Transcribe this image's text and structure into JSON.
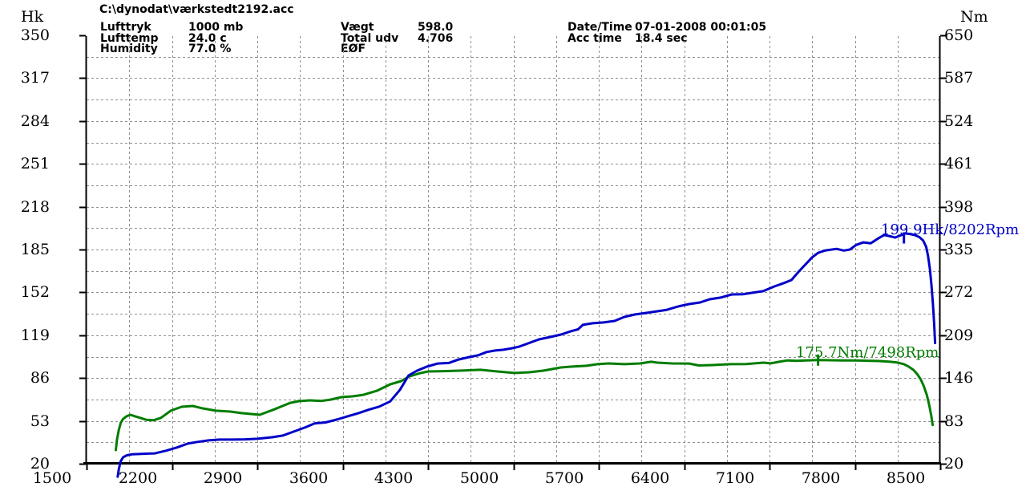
{
  "header": {
    "file_path": "C:\\dynodat\\værkstedt2192.acc",
    "info_columns": [
      {
        "rows": [
          {
            "label": "Lufttryk",
            "value": "1000 mb"
          },
          {
            "label": "Lufttemp",
            "value": "24.0 c"
          },
          {
            "label": "Humidity",
            "value": "77.0 %"
          }
        ]
      },
      {
        "rows": [
          {
            "label": "Vægt",
            "value": "598.0"
          },
          {
            "label": "Total udv",
            "value": "4.706"
          },
          {
            "label": "EØF",
            "value": ""
          }
        ]
      },
      {
        "rows": [
          {
            "label": "Date/Time",
            "value": "07-01-2008 00:01:05"
          },
          {
            "label": "Acc time",
            "value": "18.4 sec"
          }
        ]
      }
    ]
  },
  "chart_data": {
    "type": "line",
    "grid": "dashed",
    "colors": {
      "grid": "#8f8f8f",
      "axis": "#000000",
      "power": "#0000c8",
      "torque": "#007d00"
    },
    "x_axis": {
      "unit": "Rpm",
      "min": 1500,
      "max": 8500,
      "major_tick_step": 700,
      "minor_grid_step": 350,
      "tick_labels": [
        "1500",
        "2200",
        "2900",
        "3600",
        "4300",
        "5000",
        "5700",
        "6400",
        "7100",
        "7800",
        "8500"
      ]
    },
    "y_left": {
      "unit": "Hk",
      "min": 20,
      "max": 350,
      "step": 33,
      "tick_labels": [
        "350",
        "317",
        "284",
        "251",
        "218",
        "185",
        "152",
        "119",
        "86",
        "53",
        "20"
      ]
    },
    "y_right": {
      "unit": "Nm",
      "min": 20,
      "max": 650,
      "step": 63,
      "tick_labels": [
        "650",
        "587",
        "524",
        "461",
        "398",
        "335",
        "272",
        "209",
        "146",
        "83",
        "20"
      ]
    },
    "series": [
      {
        "name": "power",
        "unit": "Hk",
        "axis": "left",
        "color": "#0000c8",
        "peak_annotation": "199.9Hk/8202Rpm",
        "peak_value": 199.9,
        "peak_rpm": 8202,
        "points": [
          [
            1755,
            10
          ],
          [
            1765,
            16
          ],
          [
            1780,
            22
          ],
          [
            1800,
            25
          ],
          [
            1830,
            26.5
          ],
          [
            1870,
            27.2
          ],
          [
            1930,
            27.5
          ],
          [
            2000,
            27.8
          ],
          [
            2060,
            28
          ],
          [
            2150,
            30
          ],
          [
            2240,
            32.5
          ],
          [
            2330,
            35.5
          ],
          [
            2410,
            36.8
          ],
          [
            2500,
            38
          ],
          [
            2590,
            38.6
          ],
          [
            2700,
            38.6
          ],
          [
            2800,
            38.8
          ],
          [
            2900,
            39.2
          ],
          [
            3020,
            40.4
          ],
          [
            3110,
            41.7
          ],
          [
            3200,
            44.8
          ],
          [
            3290,
            47.9
          ],
          [
            3370,
            51
          ],
          [
            3460,
            51.8
          ],
          [
            3550,
            54
          ],
          [
            3640,
            56.5
          ],
          [
            3730,
            59
          ],
          [
            3810,
            61.5
          ],
          [
            3900,
            64
          ],
          [
            3990,
            68
          ],
          [
            4070,
            77
          ],
          [
            4140,
            88
          ],
          [
            4210,
            91.7
          ],
          [
            4290,
            94.8
          ],
          [
            4380,
            97.2
          ],
          [
            4470,
            97.6
          ],
          [
            4550,
            100.3
          ],
          [
            4640,
            102.2
          ],
          [
            4710,
            103.5
          ],
          [
            4780,
            106
          ],
          [
            4850,
            107.2
          ],
          [
            4920,
            107.8
          ],
          [
            4990,
            109
          ],
          [
            5050,
            110.3
          ],
          [
            5120,
            112.7
          ],
          [
            5210,
            115.8
          ],
          [
            5300,
            117.6
          ],
          [
            5390,
            119.5
          ],
          [
            5470,
            122
          ],
          [
            5530,
            123.5
          ],
          [
            5570,
            127
          ],
          [
            5650,
            128.2
          ],
          [
            5740,
            128.8
          ],
          [
            5830,
            130
          ],
          [
            5910,
            133.1
          ],
          [
            6000,
            135
          ],
          [
            6090,
            136.2
          ],
          [
            6180,
            137.4
          ],
          [
            6260,
            138.6
          ],
          [
            6350,
            141.1
          ],
          [
            6440,
            143
          ],
          [
            6530,
            144.2
          ],
          [
            6610,
            146.7
          ],
          [
            6700,
            148
          ],
          [
            6790,
            150.4
          ],
          [
            6880,
            150.5
          ],
          [
            6960,
            151.7
          ],
          [
            7050,
            153
          ],
          [
            7140,
            156.6
          ],
          [
            7220,
            159.2
          ],
          [
            7280,
            161.5
          ],
          [
            7340,
            168
          ],
          [
            7400,
            174
          ],
          [
            7450,
            179
          ],
          [
            7500,
            182.5
          ],
          [
            7560,
            184.3
          ],
          [
            7650,
            185.5
          ],
          [
            7710,
            184.2
          ],
          [
            7760,
            185
          ],
          [
            7810,
            188.5
          ],
          [
            7870,
            190.5
          ],
          [
            7930,
            189.8
          ],
          [
            8000,
            194
          ],
          [
            8040,
            196.2
          ],
          [
            8090,
            195.2
          ],
          [
            8130,
            194.2
          ],
          [
            8190,
            196.5
          ],
          [
            8210,
            197.4
          ],
          [
            8250,
            197
          ],
          [
            8290,
            196.2
          ],
          [
            8330,
            194.5
          ],
          [
            8360,
            192
          ],
          [
            8385,
            187
          ],
          [
            8400,
            180
          ],
          [
            8415,
            170
          ],
          [
            8428,
            158
          ],
          [
            8440,
            143
          ],
          [
            8450,
            128
          ],
          [
            8458,
            113
          ]
        ]
      },
      {
        "name": "torque",
        "unit": "Nm",
        "axis": "right",
        "color": "#007d00",
        "peak_annotation": "175.7Nm/7498Rpm",
        "peak_value": 175.7,
        "peak_rpm": 7498,
        "points": [
          [
            1740,
            40
          ],
          [
            1750,
            56
          ],
          [
            1765,
            70
          ],
          [
            1780,
            80
          ],
          [
            1800,
            86
          ],
          [
            1830,
            90
          ],
          [
            1860,
            92
          ],
          [
            1900,
            89.5
          ],
          [
            1940,
            87.5
          ],
          [
            1990,
            84.5
          ],
          [
            2050,
            84
          ],
          [
            2110,
            87.5
          ],
          [
            2190,
            98
          ],
          [
            2280,
            103.8
          ],
          [
            2370,
            105
          ],
          [
            2450,
            101.5
          ],
          [
            2560,
            98
          ],
          [
            2680,
            96.7
          ],
          [
            2770,
            94.5
          ],
          [
            2850,
            93.2
          ],
          [
            2920,
            92
          ],
          [
            3040,
            100
          ],
          [
            3170,
            109.6
          ],
          [
            3240,
            112
          ],
          [
            3330,
            113.2
          ],
          [
            3420,
            112.2
          ],
          [
            3500,
            114.3
          ],
          [
            3590,
            117.9
          ],
          [
            3680,
            119.1
          ],
          [
            3770,
            121.4
          ],
          [
            3880,
            127.3
          ],
          [
            3990,
            136.8
          ],
          [
            4080,
            141.5
          ],
          [
            4140,
            148
          ],
          [
            4230,
            153
          ],
          [
            4300,
            155.7
          ],
          [
            4430,
            156.2
          ],
          [
            4580,
            157
          ],
          [
            4730,
            158.1
          ],
          [
            4860,
            155.8
          ],
          [
            5010,
            153.4
          ],
          [
            5130,
            154.5
          ],
          [
            5250,
            157
          ],
          [
            5390,
            161.6
          ],
          [
            5470,
            162.8
          ],
          [
            5600,
            164
          ],
          [
            5690,
            166.4
          ],
          [
            5780,
            167.5
          ],
          [
            5910,
            166.4
          ],
          [
            6040,
            167.5
          ],
          [
            6130,
            169.9
          ],
          [
            6180,
            168.7
          ],
          [
            6300,
            167.5
          ],
          [
            6440,
            167.3
          ],
          [
            6520,
            164.5
          ],
          [
            6650,
            165.2
          ],
          [
            6780,
            166.4
          ],
          [
            6910,
            166.5
          ],
          [
            7050,
            168.7
          ],
          [
            7110,
            167.6
          ],
          [
            7180,
            170
          ],
          [
            7250,
            172
          ],
          [
            7320,
            171.2
          ],
          [
            7400,
            172
          ],
          [
            7500,
            172.4
          ],
          [
            7600,
            172.2
          ],
          [
            7700,
            172
          ],
          [
            7800,
            172
          ],
          [
            7900,
            171.5
          ],
          [
            8000,
            171
          ],
          [
            8090,
            170
          ],
          [
            8150,
            168.8
          ],
          [
            8200,
            166.5
          ],
          [
            8240,
            163
          ],
          [
            8280,
            158
          ],
          [
            8310,
            152
          ],
          [
            8340,
            144
          ],
          [
            8365,
            134
          ],
          [
            8390,
            121
          ],
          [
            8410,
            106
          ],
          [
            8425,
            92
          ],
          [
            8438,
            77
          ]
        ]
      }
    ]
  }
}
